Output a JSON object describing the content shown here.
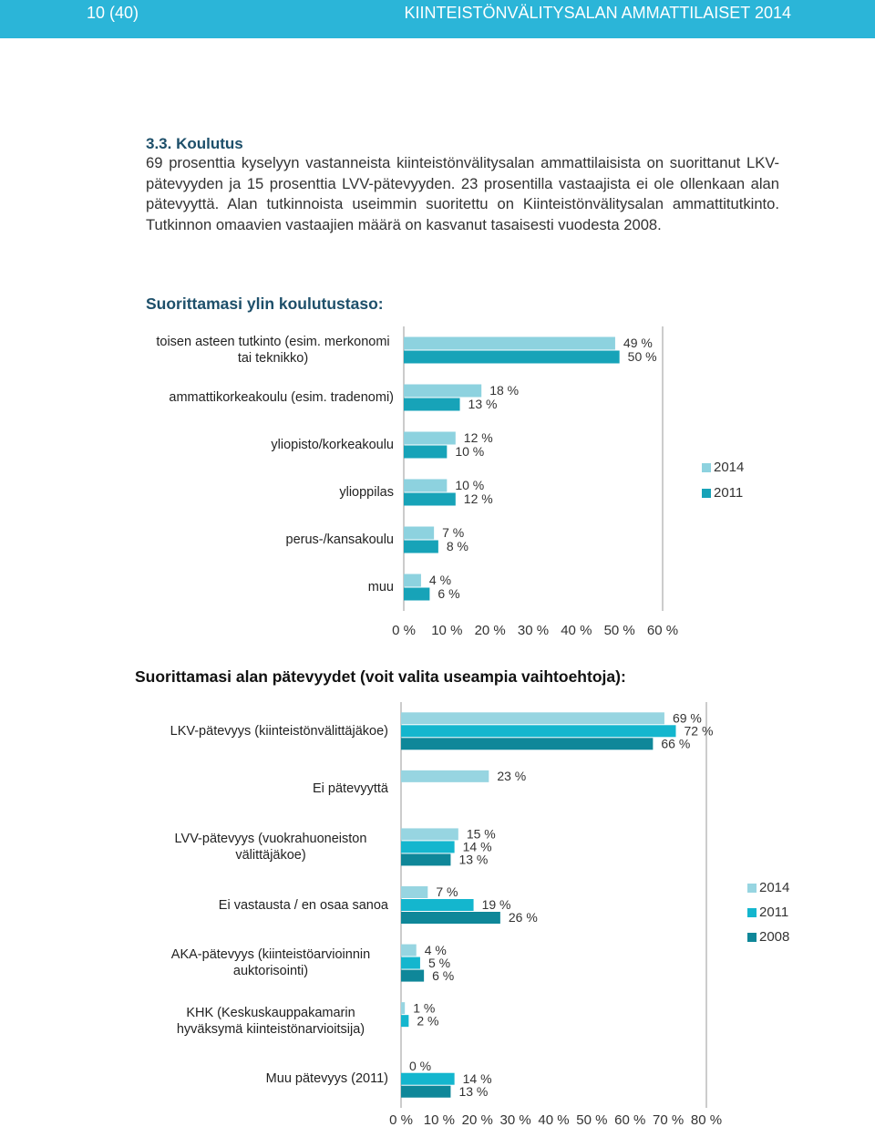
{
  "header": {
    "page": "10 (40)",
    "title": "KIINTEISTÖNVÄLITYSALAN AMMATTILAISET 2014"
  },
  "section": {
    "heading": "3.3. Koulutus",
    "paragraph": "69 prosenttia kyselyyn vastanneista kiinteistönvälitysalan ammattilaisista on suorittanut LKV-pätevyyden ja 15 prosenttia LVV-pätevyyden. 23 prosentilla vastaajista ei ole ollenkaan alan pätevyyttä. Alan tutkinnoista useimmin suoritettu on Kiinteistönvälitysalan ammattitutkinto. Tutkinnon omaavien vastaajien määrä on kasvanut tasaisesti vuodesta 2008."
  },
  "chart_data": [
    {
      "type": "bar",
      "orientation": "horizontal",
      "title": "Suorittamasi ylin koulutustaso:",
      "categories": [
        "toisen asteen tutkinto (esim. merkonomi tai teknikko)",
        "ammattikorkeakoulu (esim. tradenomi)",
        "yliopisto/korkeakoulu",
        "ylioppilas",
        "perus-/kansakoulu",
        "muu"
      ],
      "series": [
        {
          "name": "2014",
          "color": "#8dd2df",
          "values": [
            49,
            18,
            12,
            10,
            7,
            4
          ],
          "value_labels": [
            "49 %",
            "18 %",
            "12 %",
            "10 %",
            "7 %",
            "4 %"
          ]
        },
        {
          "name": "2011",
          "color": "#17a3b8",
          "values": [
            50,
            13,
            10,
            12,
            8,
            6
          ],
          "value_labels": [
            "50 %",
            "13 %",
            "10 %",
            "12 %",
            "8 %",
            "6 %"
          ]
        }
      ],
      "xlim": [
        0,
        60
      ],
      "xticks": [
        {
          "value": 0,
          "label": "0 %"
        },
        {
          "value": 10,
          "label": "10 %"
        },
        {
          "value": 20,
          "label": "20 %"
        },
        {
          "value": 30,
          "label": "30 %"
        },
        {
          "value": 40,
          "label": "40 %"
        },
        {
          "value": 50,
          "label": "50 %"
        },
        {
          "value": 60,
          "label": "60 %"
        }
      ],
      "legend": "right"
    },
    {
      "type": "bar",
      "orientation": "horizontal",
      "title": "Suorittamasi alan pätevyydet (voit valita useampia vaihtoehtoja):",
      "categories": [
        "LKV-pätevyys (kiinteistönvälittäjäkoe)",
        "Ei pätevyyttä",
        "LVV-pätevyys (vuokrahuoneiston välittäjäkoe)",
        "Ei vastausta / en osaa sanoa",
        "AKA-pätevyys (kiinteistöarvioinnin auktorisointi)",
        "KHK (Keskuskauppakamarin hyväksymä kiinteistönarvioitsija)",
        "Muu pätevyys (2011)"
      ],
      "series": [
        {
          "name": "2014",
          "color": "#97d5e1",
          "values": [
            69,
            23,
            15,
            7,
            4,
            1,
            0
          ],
          "value_labels": [
            "69 %",
            "23 %",
            "15 %",
            "7 %",
            "4 %",
            "1 %",
            "0 %"
          ]
        },
        {
          "name": "2011",
          "color": "#14b6ce",
          "values": [
            72,
            null,
            14,
            19,
            5,
            2,
            14
          ],
          "value_labels": [
            "72 %",
            null,
            "14 %",
            "19 %",
            "5 %",
            "2 %",
            "14 %"
          ]
        },
        {
          "name": "2008",
          "color": "#0f8799",
          "values": [
            66,
            null,
            13,
            26,
            6,
            null,
            13
          ],
          "value_labels": [
            "66 %",
            null,
            "13 %",
            "26 %",
            "6 %",
            null,
            "13 %"
          ]
        }
      ],
      "xlim": [
        0,
        80
      ],
      "xticks": [
        {
          "value": 0,
          "label": "0 %"
        },
        {
          "value": 10,
          "label": "10 %"
        },
        {
          "value": 20,
          "label": "20 %"
        },
        {
          "value": 30,
          "label": "30 %"
        },
        {
          "value": 40,
          "label": "40 %"
        },
        {
          "value": 50,
          "label": "50 %"
        },
        {
          "value": 60,
          "label": "60 %"
        },
        {
          "value": 70,
          "label": "70 %"
        },
        {
          "value": 80,
          "label": "80 %"
        }
      ],
      "legend": "right"
    }
  ]
}
